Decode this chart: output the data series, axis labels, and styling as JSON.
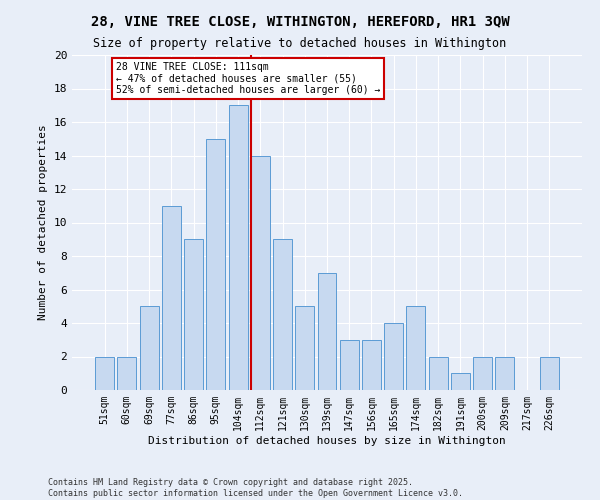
{
  "title": "28, VINE TREE CLOSE, WITHINGTON, HEREFORD, HR1 3QW",
  "subtitle": "Size of property relative to detached houses in Withington",
  "xlabel": "Distribution of detached houses by size in Withington",
  "ylabel": "Number of detached properties",
  "categories": [
    "51sqm",
    "60sqm",
    "69sqm",
    "77sqm",
    "86sqm",
    "95sqm",
    "104sqm",
    "112sqm",
    "121sqm",
    "130sqm",
    "139sqm",
    "147sqm",
    "156sqm",
    "165sqm",
    "174sqm",
    "182sqm",
    "191sqm",
    "200sqm",
    "209sqm",
    "217sqm",
    "226sqm"
  ],
  "values": [
    2,
    2,
    5,
    11,
    9,
    15,
    17,
    14,
    9,
    5,
    7,
    3,
    3,
    4,
    5,
    2,
    1,
    2,
    2,
    0,
    2
  ],
  "bar_color": "#c7d9f0",
  "bar_edge_color": "#5b9bd5",
  "highlight_index": 7,
  "highlight_line_color": "#cc0000",
  "annotation_text": "28 VINE TREE CLOSE: 111sqm\n← 47% of detached houses are smaller (55)\n52% of semi-detached houses are larger (60) →",
  "annotation_box_color": "#ffffff",
  "annotation_box_edge_color": "#cc0000",
  "ylim": [
    0,
    20
  ],
  "yticks": [
    0,
    2,
    4,
    6,
    8,
    10,
    12,
    14,
    16,
    18,
    20
  ],
  "footer": "Contains HM Land Registry data © Crown copyright and database right 2025.\nContains public sector information licensed under the Open Government Licence v3.0.",
  "bg_color": "#e8eef8",
  "plot_bg_color": "#e8eef8",
  "title_fontsize": 10,
  "subtitle_fontsize": 8.5,
  "tick_fontsize": 7,
  "ylabel_fontsize": 8,
  "xlabel_fontsize": 8,
  "footer_fontsize": 6
}
